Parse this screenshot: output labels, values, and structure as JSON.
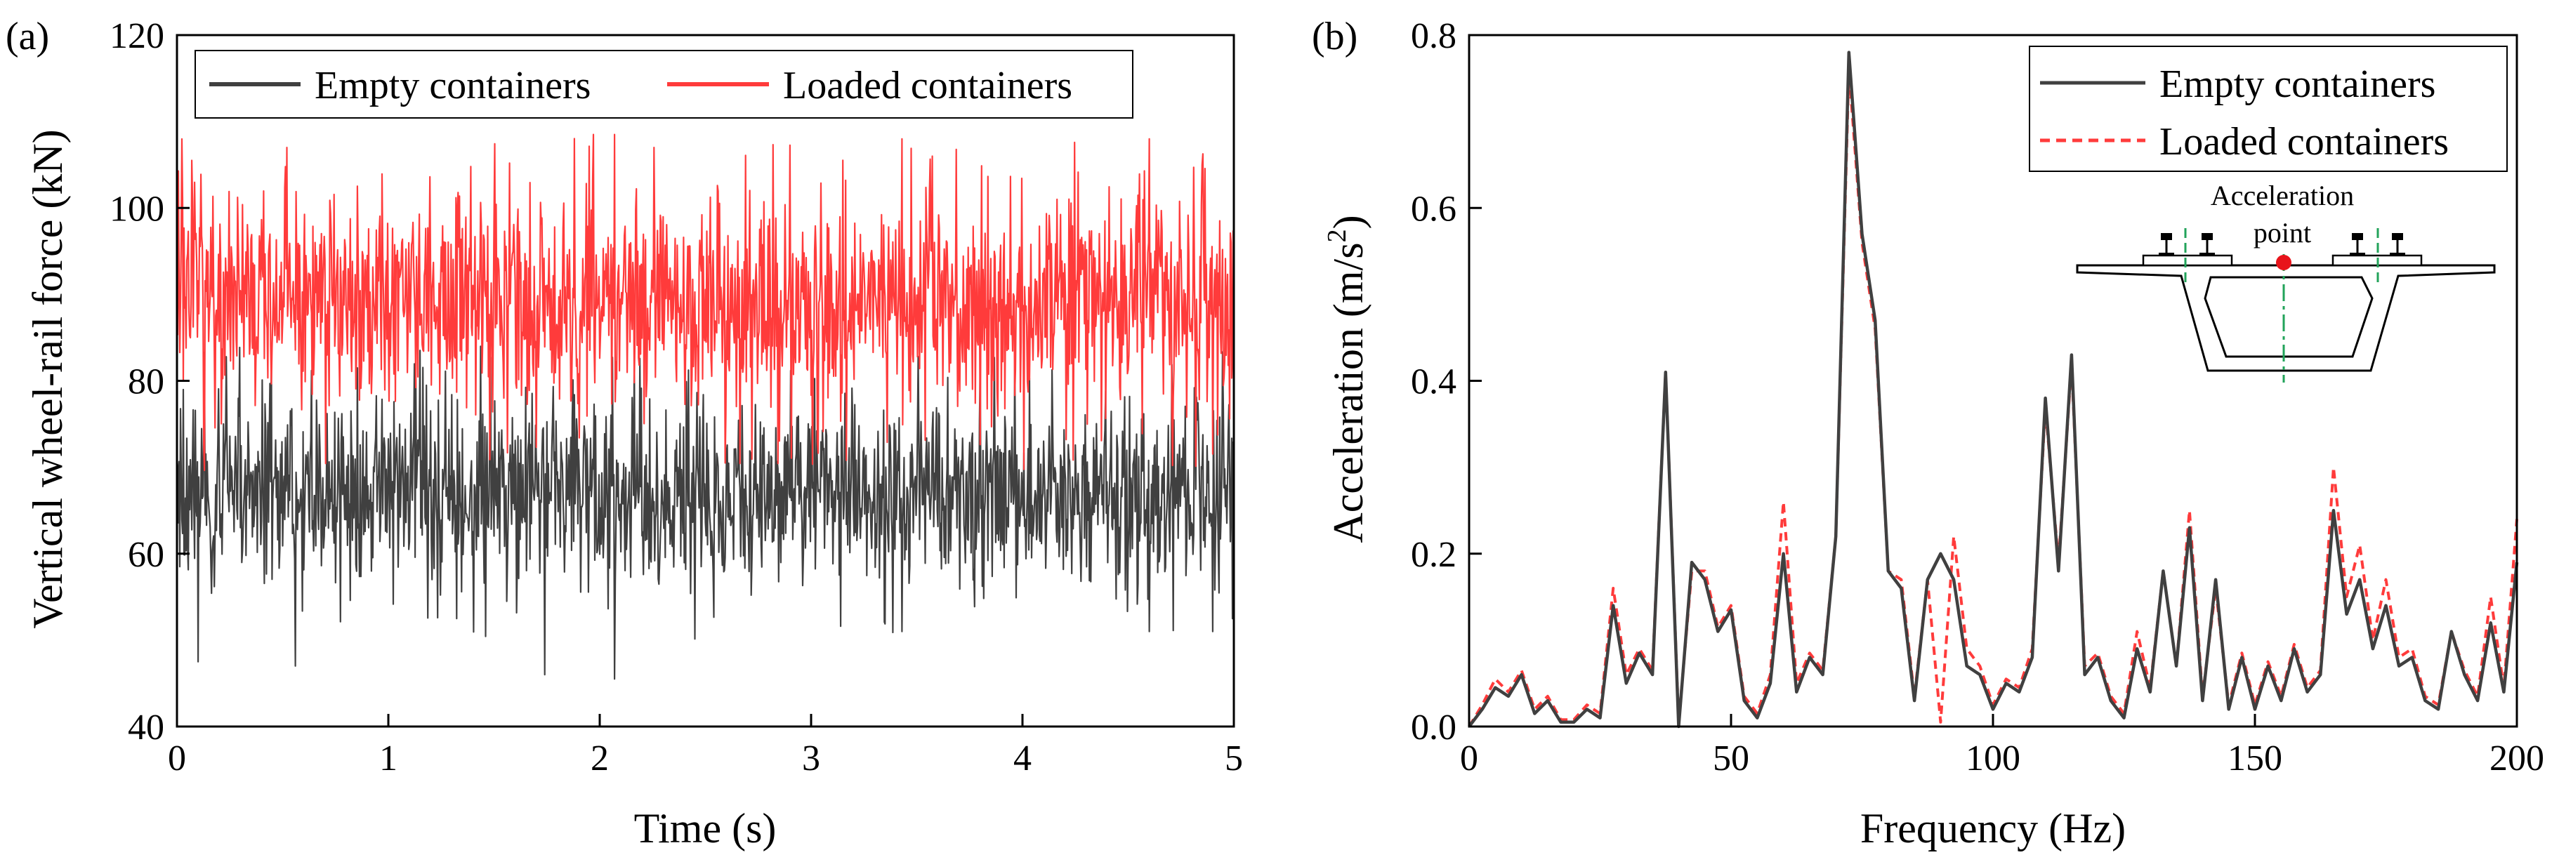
{
  "chart_data": [
    {
      "panel_label": "(a)",
      "type": "line",
      "title": "",
      "xlabel": "Time (s)",
      "ylabel": "Vertical wheel-rail force (kN)",
      "xlim": [
        0,
        5
      ],
      "ylim": [
        40,
        120
      ],
      "xticks": [
        0,
        1,
        2,
        3,
        4,
        5
      ],
      "yticks": [
        40,
        60,
        80,
        100,
        120
      ],
      "grid": false,
      "legend_position": "top",
      "series": [
        {
          "name": "Empty containers",
          "color": "#404040",
          "style": "solid",
          "mean": 67,
          "max": 84,
          "min": 45.5,
          "peaks": [
            [
              0.1,
              47.5
            ],
            [
              0.56,
              47
            ],
            [
              1.74,
              46
            ],
            [
              2.07,
              45.5
            ],
            [
              3.43,
              51
            ],
            [
              4.6,
              51
            ],
            [
              4.9,
              51
            ]
          ]
        },
        {
          "name": "Loaded containers",
          "color": "#ff3b3b",
          "style": "solid",
          "mean": 89,
          "max": 108.5,
          "min": 69,
          "peaks": [
            [
              0.07,
              105.5
            ],
            [
              0.52,
              107
            ],
            [
              1.97,
              108.5
            ],
            [
              2.07,
              108.5
            ],
            [
              3.43,
              108
            ],
            [
              4.6,
              108
            ],
            [
              4.85,
              105
            ]
          ]
        }
      ]
    },
    {
      "panel_label": "(b)",
      "type": "line",
      "title": "",
      "xlabel": "Frequency (Hz)",
      "ylabel": "Acceleration (m/s",
      "ylabel_sup": "2",
      "ylabel_end": ")",
      "xlim": [
        0,
        200
      ],
      "ylim": [
        0,
        0.8
      ],
      "xticks": [
        0,
        50,
        100,
        150,
        200
      ],
      "yticks": [
        "0.0",
        "0.2",
        "0.4",
        "0.6",
        "0.8"
      ],
      "grid": false,
      "legend_position": "top-right",
      "inset": {
        "label_line1": "Acceleration",
        "label_line2": "point"
      },
      "x": [
        0,
        2.5,
        5,
        7.5,
        10,
        12.5,
        15,
        17.5,
        20,
        22.5,
        25,
        27.5,
        30,
        32.5,
        35,
        37.5,
        40,
        42.5,
        45,
        47.5,
        50,
        52.5,
        55,
        57.5,
        60,
        62.5,
        65,
        67.5,
        70,
        72.5,
        75,
        77.5,
        80,
        82.5,
        85,
        87.5,
        90,
        92.5,
        95,
        97.5,
        100,
        102.5,
        105,
        107.5,
        110,
        112.5,
        115,
        117.5,
        120,
        122.5,
        125,
        127.5,
        130,
        132.5,
        135,
        137.5,
        140,
        142.5,
        145,
        147.5,
        150,
        152.5,
        155,
        157.5,
        160,
        162.5,
        165,
        167.5,
        170,
        172.5,
        175,
        177.5,
        180,
        182.5,
        185,
        187.5,
        190,
        192.5,
        195,
        197.5,
        200
      ],
      "series": [
        {
          "name": "Empty containers",
          "color": "#404040",
          "style": "solid",
          "values": [
            0,
            0.02,
            0.045,
            0.035,
            0.06,
            0.015,
            0.03,
            0.005,
            0.005,
            0.02,
            0.01,
            0.14,
            0.05,
            0.085,
            0.06,
            0.41,
            0.0,
            0.19,
            0.17,
            0.11,
            0.135,
            0.03,
            0.01,
            0.05,
            0.2,
            0.04,
            0.08,
            0.06,
            0.22,
            0.78,
            0.57,
            0.47,
            0.18,
            0.16,
            0.03,
            0.17,
            0.2,
            0.17,
            0.07,
            0.06,
            0.02,
            0.05,
            0.04,
            0.08,
            0.38,
            0.18,
            0.43,
            0.06,
            0.08,
            0.03,
            0.01,
            0.09,
            0.04,
            0.18,
            0.07,
            0.23,
            0.03,
            0.17,
            0.02,
            0.08,
            0.02,
            0.07,
            0.03,
            0.09,
            0.04,
            0.06,
            0.25,
            0.13,
            0.17,
            0.09,
            0.14,
            0.07,
            0.08,
            0.03,
            0.02,
            0.11,
            0.06,
            0.03,
            0.12,
            0.04,
            0.19
          ]
        },
        {
          "name": "Loaded containers",
          "color": "#ff3b3b",
          "style": "dashed",
          "values": [
            0,
            0.025,
            0.055,
            0.04,
            0.065,
            0.02,
            0.035,
            0.008,
            0.008,
            0.025,
            0.015,
            0.16,
            0.06,
            0.09,
            0.065,
            0.41,
            0.005,
            0.18,
            0.18,
            0.115,
            0.14,
            0.035,
            0.015,
            0.06,
            0.26,
            0.05,
            0.085,
            0.065,
            0.22,
            0.76,
            0.56,
            0.46,
            0.18,
            0.17,
            0.035,
            0.17,
            0.005,
            0.22,
            0.09,
            0.07,
            0.025,
            0.055,
            0.045,
            0.09,
            0.37,
            0.19,
            0.42,
            0.07,
            0.085,
            0.035,
            0.015,
            0.11,
            0.045,
            0.18,
            0.07,
            0.25,
            0.035,
            0.16,
            0.025,
            0.085,
            0.025,
            0.075,
            0.035,
            0.095,
            0.045,
            0.065,
            0.3,
            0.15,
            0.21,
            0.1,
            0.17,
            0.08,
            0.09,
            0.035,
            0.025,
            0.11,
            0.065,
            0.035,
            0.15,
            0.045,
            0.24
          ]
        }
      ]
    }
  ]
}
